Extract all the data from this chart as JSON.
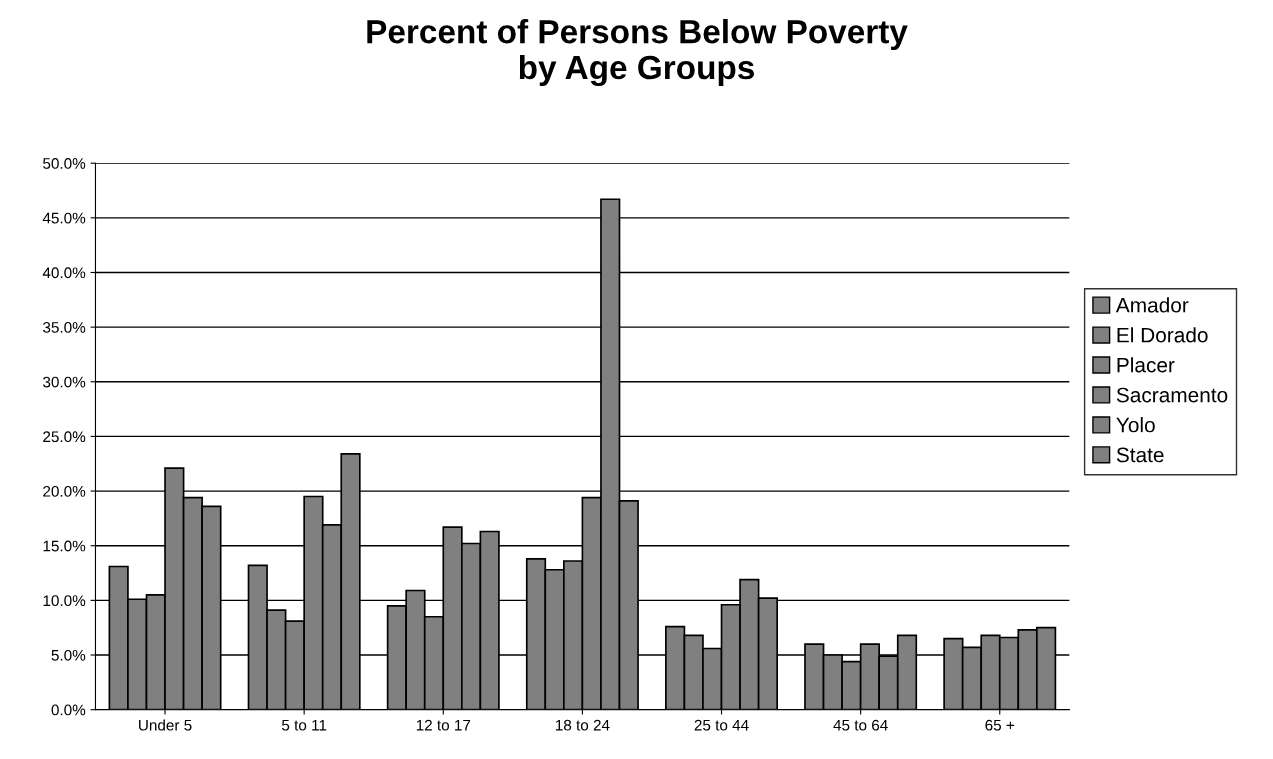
{
  "chart_data": {
    "type": "bar",
    "title": "Percent of Persons Below Poverty\nby Age Groups",
    "categories": [
      "Under 5",
      "5 to 11",
      "12 to 17",
      "18 to 24",
      "25 to 44",
      "45 to 64",
      "65 +"
    ],
    "series": [
      {
        "name": "Amador",
        "color": "#808080",
        "values": [
          13.1,
          13.2,
          9.5,
          13.8,
          7.6,
          6.0,
          6.5
        ]
      },
      {
        "name": "El Dorado",
        "color": "#808080",
        "values": [
          10.1,
          9.1,
          10.9,
          12.8,
          6.8,
          5.0,
          5.7
        ]
      },
      {
        "name": "Placer",
        "color": "#808080",
        "values": [
          10.5,
          8.1,
          8.5,
          13.6,
          5.6,
          4.4,
          6.8
        ]
      },
      {
        "name": "Sacramento",
        "color": "#808080",
        "values": [
          22.1,
          19.5,
          16.7,
          19.4,
          9.6,
          6.0,
          6.6
        ]
      },
      {
        "name": "Yolo",
        "color": "#808080",
        "values": [
          19.4,
          16.9,
          15.2,
          46.7,
          11.9,
          4.9,
          7.3
        ]
      },
      {
        "name": "State",
        "color": "#808080",
        "values": [
          18.6,
          23.4,
          16.3,
          19.1,
          10.2,
          6.8,
          7.5
        ]
      }
    ],
    "ylim": [
      0,
      50
    ],
    "yticks": [
      {
        "value": 0,
        "label": "0.0%"
      },
      {
        "value": 5,
        "label": "5.0%"
      },
      {
        "value": 10,
        "label": "10.0%"
      },
      {
        "value": 15,
        "label": "15.0%"
      },
      {
        "value": 20,
        "label": "20.0%"
      },
      {
        "value": 25,
        "label": "25.0%"
      },
      {
        "value": 30,
        "label": "30.0%"
      },
      {
        "value": 35,
        "label": "35.0%"
      },
      {
        "value": 40,
        "label": "40.0%"
      },
      {
        "value": 45,
        "label": "45.0%"
      },
      {
        "value": 50,
        "label": "50.0%"
      }
    ],
    "grid": "y",
    "legend": "right"
  }
}
